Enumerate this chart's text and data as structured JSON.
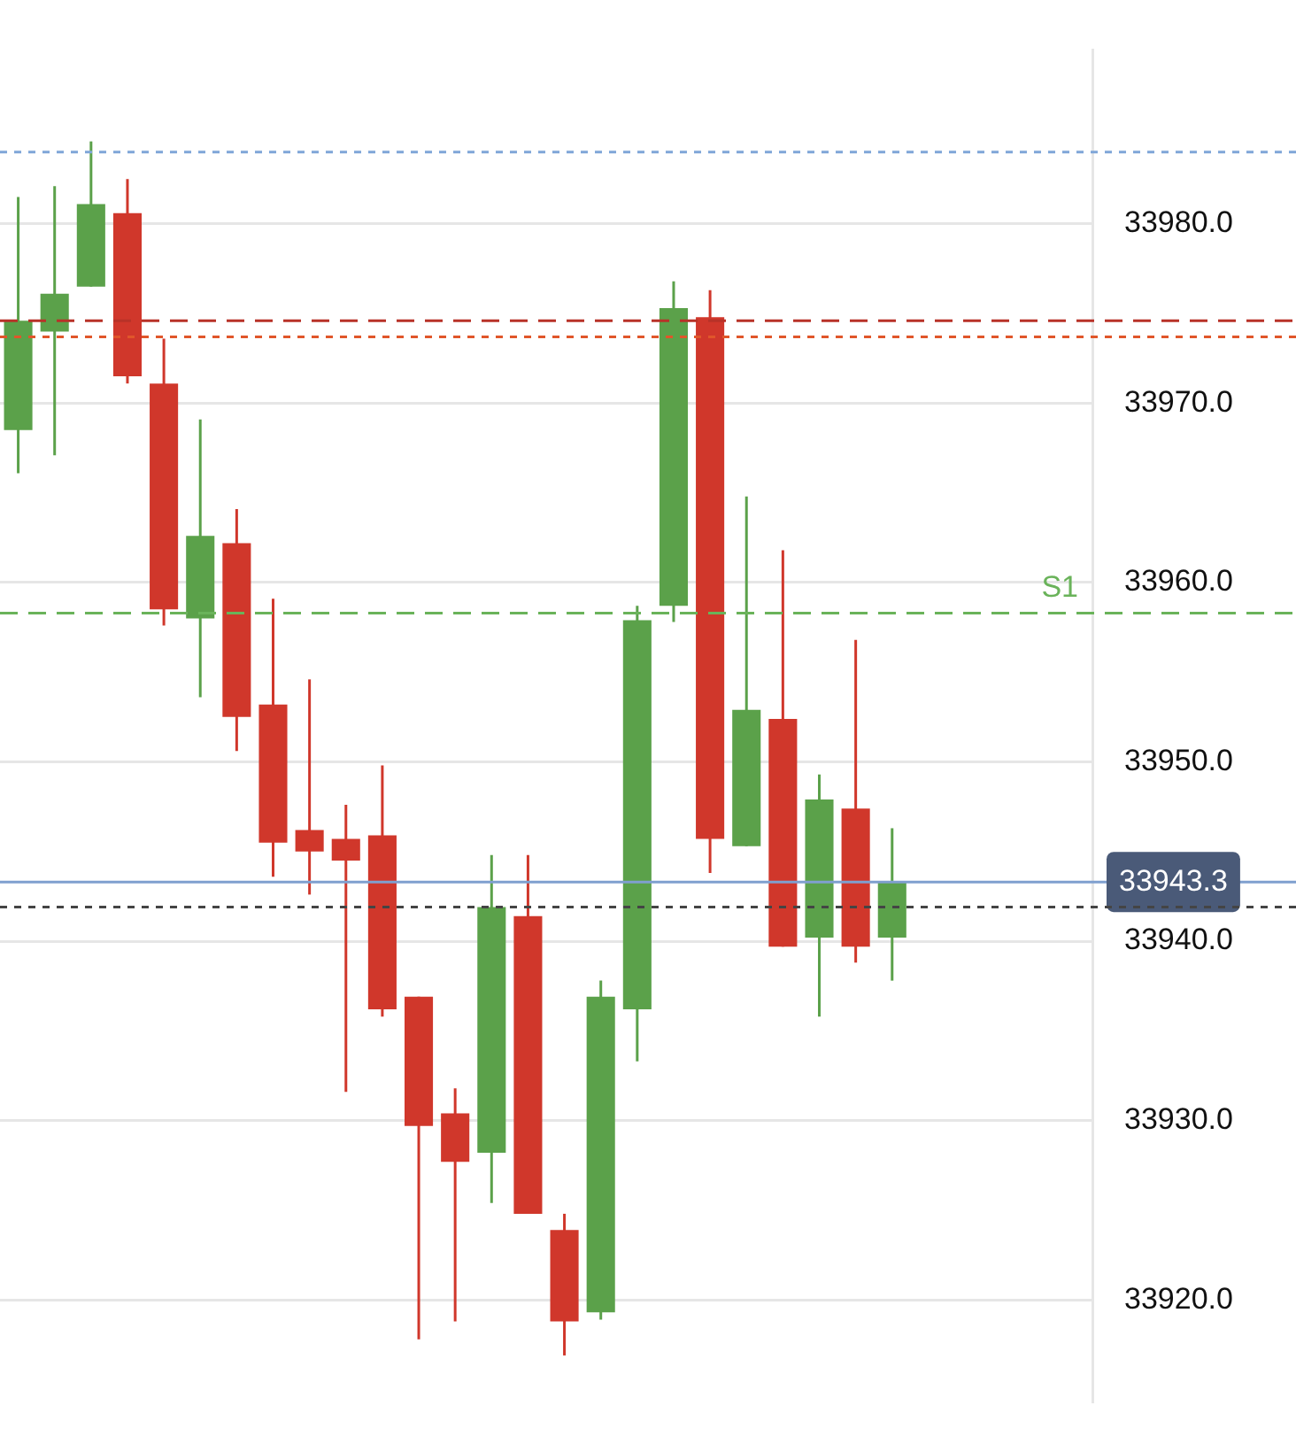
{
  "chart_data": {
    "type": "candlestick",
    "categories": [
      null,
      null,
      null,
      null,
      null,
      null,
      null,
      null,
      null,
      null,
      null,
      null,
      null,
      null,
      null,
      null,
      null,
      null,
      null,
      null,
      null,
      null,
      null,
      null,
      null,
      null,
      null,
      null,
      null,
      null
    ],
    "ohlc": [
      [
        33968.5,
        33981.5,
        33966.1,
        33974.6
      ],
      [
        33974.0,
        33982.1,
        33967.1,
        33976.1
      ],
      [
        33976.5,
        33984.6,
        33976.5,
        33981.1
      ],
      [
        33980.6,
        33982.5,
        33971.1,
        33971.5
      ],
      [
        33971.1,
        33973.6,
        33957.6,
        33958.5
      ],
      [
        33958.0,
        33969.1,
        33953.6,
        33962.6
      ],
      [
        33962.2,
        33964.1,
        33950.6,
        33952.5
      ],
      [
        33953.2,
        33959.1,
        33943.6,
        33945.5
      ],
      [
        33946.2,
        33954.6,
        33942.6,
        33945.0
      ],
      [
        33945.7,
        33947.6,
        33931.6,
        33944.5
      ],
      [
        33945.9,
        33949.8,
        33935.8,
        33936.2
      ],
      [
        33936.9,
        33936.9,
        33917.8,
        33929.7
      ],
      [
        33930.4,
        33931.8,
        33918.8,
        33927.7
      ],
      [
        33928.2,
        33944.8,
        33925.4,
        33941.9
      ],
      [
        33941.4,
        33944.8,
        33924.8,
        33924.8
      ],
      [
        33923.9,
        33924.8,
        33916.9,
        33918.8
      ],
      [
        33919.3,
        33937.8,
        33918.9,
        33936.9
      ],
      [
        33936.2,
        33958.7,
        33933.3,
        33957.9
      ],
      [
        33958.7,
        33976.8,
        33957.8,
        33975.3
      ],
      [
        33974.8,
        33976.3,
        33943.8,
        33945.7
      ],
      [
        33945.3,
        33964.8,
        33945.3,
        33952.9
      ],
      [
        33952.4,
        33961.8,
        33939.7,
        33939.7
      ],
      [
        33940.2,
        33949.3,
        33935.8,
        33947.9
      ],
      [
        33947.4,
        33956.8,
        33938.8,
        33939.7
      ],
      [
        33940.2,
        33946.3,
        33937.8,
        33943.3
      ],
      null,
      null,
      null,
      null,
      null
    ],
    "colors": [
      "#5ba14a",
      "#5ba14a",
      "#5ba14a",
      "#d0372b",
      "#d0372b",
      "#5ba14a",
      "#d0372b",
      "#d0372b",
      "#d0372b",
      "#d0372b",
      "#d0372b",
      "#d0372b",
      "#d0372b",
      "#5ba14a",
      "#d0372b",
      "#d0372b",
      "#5ba14a",
      "#5ba14a",
      "#5ba14a",
      "#d0372b",
      "#5ba14a",
      "#d0372b",
      "#5ba14a",
      "#d0372b",
      "#5ba14a",
      null,
      null,
      null,
      null,
      null
    ],
    "ylim": [
      33914.3,
      33989.7
    ],
    "yticks": [
      {
        "value": 33920,
        "label": "33920.0"
      },
      {
        "value": 33930,
        "label": "33930.0"
      },
      {
        "value": 33940,
        "label": "33940.0"
      },
      {
        "value": 33950,
        "label": "33950.0"
      },
      {
        "value": 33960,
        "label": "33960.0"
      },
      {
        "value": 33970,
        "label": "33970.0"
      },
      {
        "value": 33980,
        "label": "33980.0"
      }
    ],
    "tick_labels": "y",
    "grid": "y",
    "ref_lines": [
      {
        "axis": "y",
        "value": 33984.0,
        "color": "#7fa6d8",
        "line_style": "dotted"
      },
      {
        "axis": "y",
        "value": 33974.6,
        "color": "#b83228",
        "line_style": "dashed"
      },
      {
        "axis": "y",
        "value": 33973.7,
        "color": "#e0562a",
        "line_style": "dotted"
      },
      {
        "axis": "y",
        "value": 33958.3,
        "color": "#6ab35a",
        "line_style": "dashed",
        "label": "S1"
      },
      {
        "axis": "y",
        "value": 33943.3,
        "color": "#7f9fcf",
        "line_style": "solid",
        "label": "33943.3"
      },
      {
        "axis": "y",
        "value": 33941.9,
        "color": "#444444",
        "line_style": "dotted"
      }
    ]
  }
}
